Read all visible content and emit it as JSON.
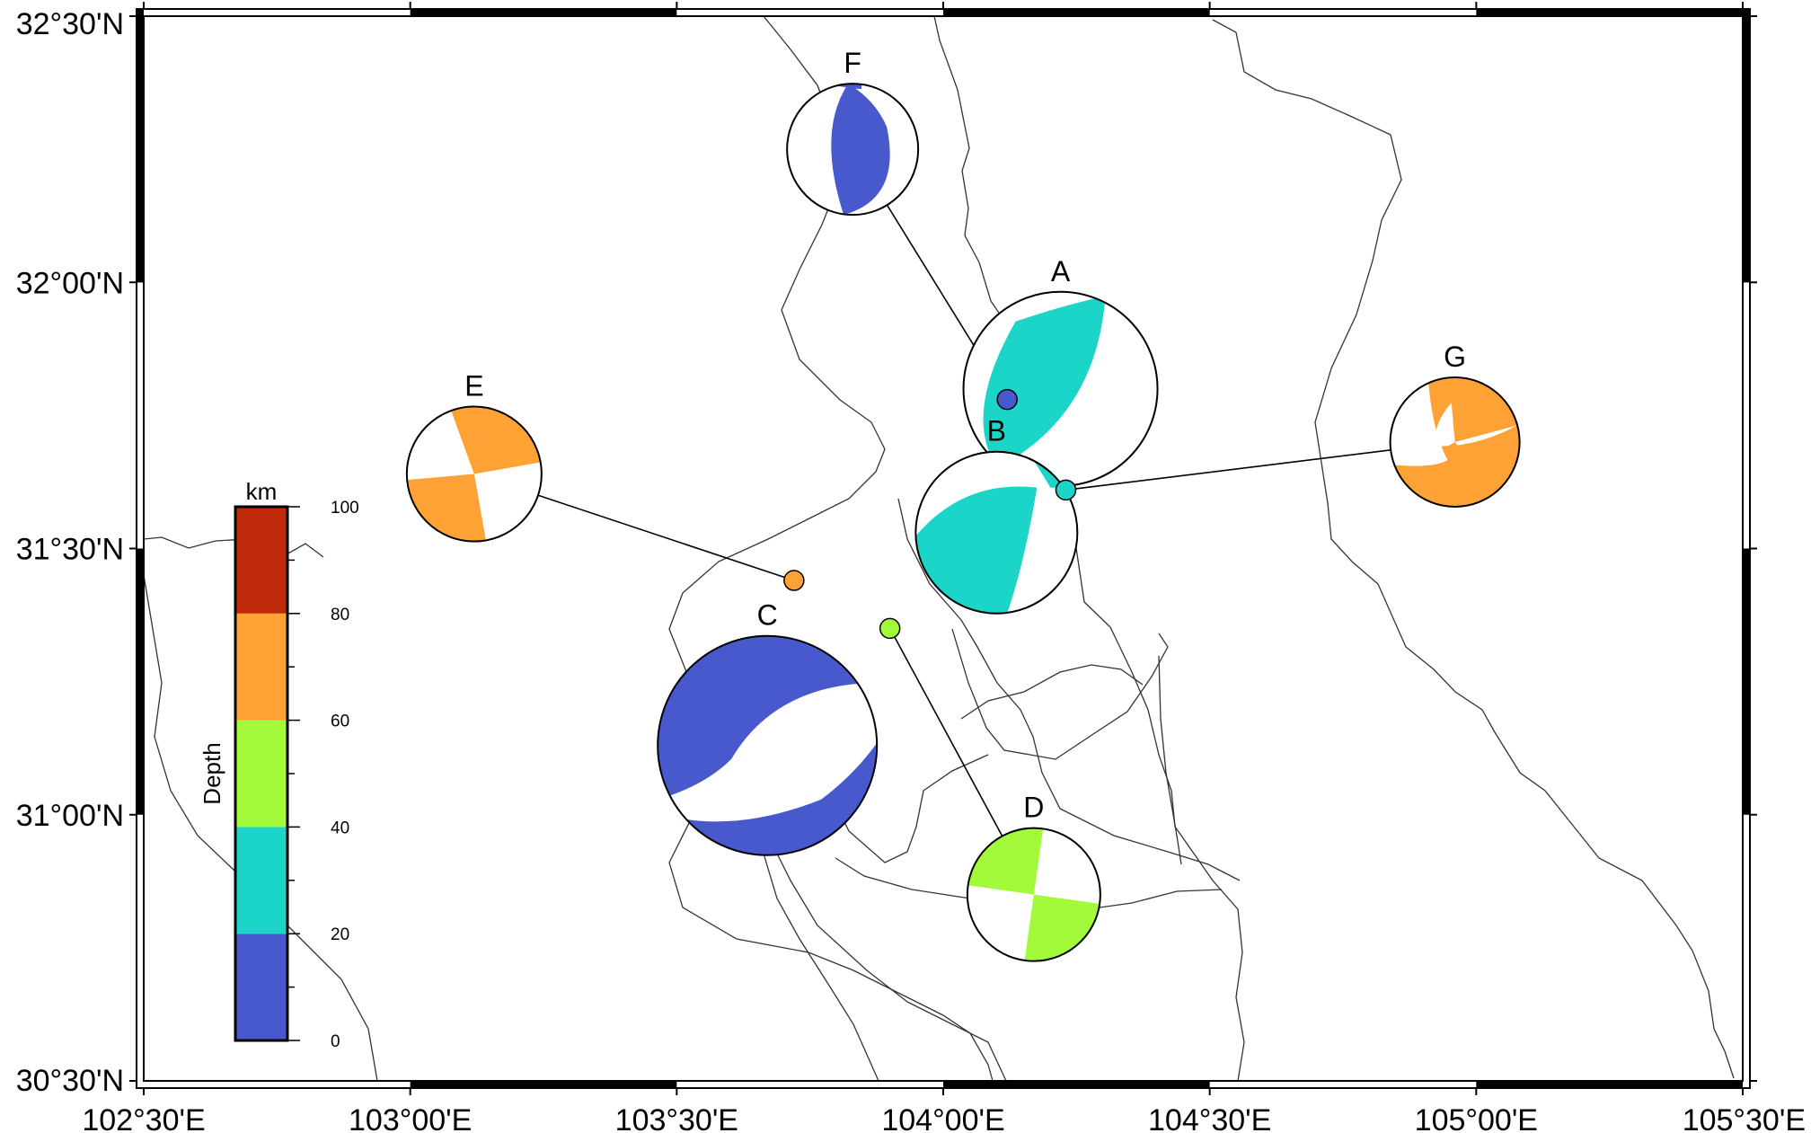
{
  "map": {
    "lon_range": [
      102.5,
      105.5
    ],
    "lat_range": [
      30.5,
      32.5
    ],
    "x_ticks": [
      {
        "lon": 102.5,
        "label": "102°30'E"
      },
      {
        "lon": 103.0,
        "label": "103°00'E"
      },
      {
        "lon": 103.5,
        "label": "103°30'E"
      },
      {
        "lon": 104.0,
        "label": "104°00'E"
      },
      {
        "lon": 104.5,
        "label": "104°30'E"
      },
      {
        "lon": 105.0,
        "label": "105°00'E"
      },
      {
        "lon": 105.5,
        "label": "105°30'E"
      }
    ],
    "y_ticks": [
      {
        "lat": 30.5,
        "label": "30°30'N"
      },
      {
        "lat": 31.0,
        "label": "31°00'N"
      },
      {
        "lat": 31.5,
        "label": "31°30'N"
      },
      {
        "lat": 32.0,
        "label": "32°00'N"
      },
      {
        "lat": 32.5,
        "label": "32°30'N"
      }
    ]
  },
  "colorbar": {
    "title": "Depth",
    "unit": "km",
    "ticks": [
      "0",
      "20",
      "40",
      "60",
      "80",
      "100"
    ],
    "bands": [
      {
        "from": 0,
        "to": 20,
        "color": "#4759cd"
      },
      {
        "from": 20,
        "to": 40,
        "color": "#1bd5c8"
      },
      {
        "from": 40,
        "to": 60,
        "color": "#a2fa3a"
      },
      {
        "from": 60,
        "to": 80,
        "color": "#fea235"
      },
      {
        "from": 80,
        "to": 100,
        "color": "#c02a0a"
      }
    ]
  },
  "events": [
    {
      "label": "A",
      "lon": 104.22,
      "lat": 31.8,
      "depth_band": "20-40",
      "color": "#1bd5c8",
      "epicenter_lon": null,
      "epicenter_lat": null
    },
    {
      "label": "B",
      "lon": 104.1,
      "lat": 31.53,
      "depth_band": "20-40",
      "color": "#1bd5c8",
      "epicenter_lon": 104.23,
      "epicenter_lat": 31.61
    },
    {
      "label": "C",
      "lon": 103.67,
      "lat": 31.13,
      "depth_band": "0-20",
      "color": "#4759cd",
      "epicenter_lon": null,
      "epicenter_lat": null
    },
    {
      "label": "D",
      "lon": 104.17,
      "lat": 30.85,
      "depth_band": "40-60",
      "color": "#a2fa3a",
      "epicenter_lon": 103.9,
      "epicenter_lat": 31.35
    },
    {
      "label": "E",
      "lon": 103.12,
      "lat": 31.64,
      "depth_band": "60-80",
      "color": "#fea235",
      "epicenter_lon": 103.72,
      "epicenter_lat": 31.44
    },
    {
      "label": "F",
      "lon": 103.83,
      "lat": 32.25,
      "depth_band": "0-20",
      "color": "#4759cd",
      "epicenter_lon": 104.12,
      "epicenter_lat": 31.78
    },
    {
      "label": "G",
      "lon": 104.96,
      "lat": 31.7,
      "depth_band": "60-80",
      "color": "#fea235",
      "epicenter_lon": 104.23,
      "epicenter_lat": 31.61
    }
  ]
}
